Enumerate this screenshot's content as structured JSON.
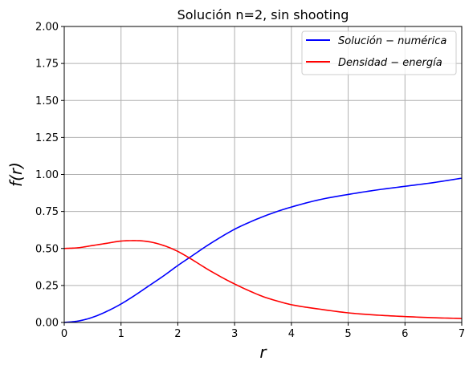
{
  "chart_data": {
    "type": "line",
    "title": "Solución n=2, sin shooting",
    "xlabel": "r",
    "ylabel": "f(r)",
    "xlim": [
      0,
      7
    ],
    "ylim": [
      0,
      2.0
    ],
    "xticks": [
      "0",
      "1",
      "2",
      "3",
      "4",
      "5",
      "6",
      "7"
    ],
    "yticks": [
      "0.00",
      "0.25",
      "0.50",
      "0.75",
      "1.00",
      "1.25",
      "1.50",
      "1.75",
      "2.00"
    ],
    "grid": true,
    "legend_position": "top-right",
    "series": [
      {
        "name": "Solución − numérica",
        "color": "#0000ff",
        "x": [
          0,
          0.25,
          0.5,
          0.75,
          1.0,
          1.25,
          1.5,
          1.75,
          2.0,
          2.25,
          2.5,
          2.75,
          3.0,
          3.25,
          3.5,
          3.75,
          4.0,
          4.5,
          5.0,
          5.5,
          6.0,
          6.5,
          7.0
        ],
        "y": [
          0.0,
          0.01,
          0.035,
          0.075,
          0.125,
          0.185,
          0.25,
          0.315,
          0.385,
          0.45,
          0.515,
          0.575,
          0.63,
          0.675,
          0.715,
          0.75,
          0.78,
          0.83,
          0.865,
          0.895,
          0.92,
          0.945,
          0.975
        ]
      },
      {
        "name": "Densidad − energía",
        "color": "#ff0000",
        "x": [
          0,
          0.25,
          0.5,
          0.75,
          1.0,
          1.25,
          1.5,
          1.75,
          2.0,
          2.25,
          2.5,
          2.75,
          3.0,
          3.25,
          3.5,
          3.75,
          4.0,
          4.5,
          5.0,
          5.5,
          6.0,
          6.5,
          7.0
        ],
        "y": [
          0.5,
          0.505,
          0.52,
          0.535,
          0.55,
          0.553,
          0.545,
          0.52,
          0.48,
          0.425,
          0.365,
          0.31,
          0.26,
          0.215,
          0.175,
          0.145,
          0.12,
          0.09,
          0.065,
          0.05,
          0.04,
          0.032,
          0.027
        ]
      }
    ]
  }
}
